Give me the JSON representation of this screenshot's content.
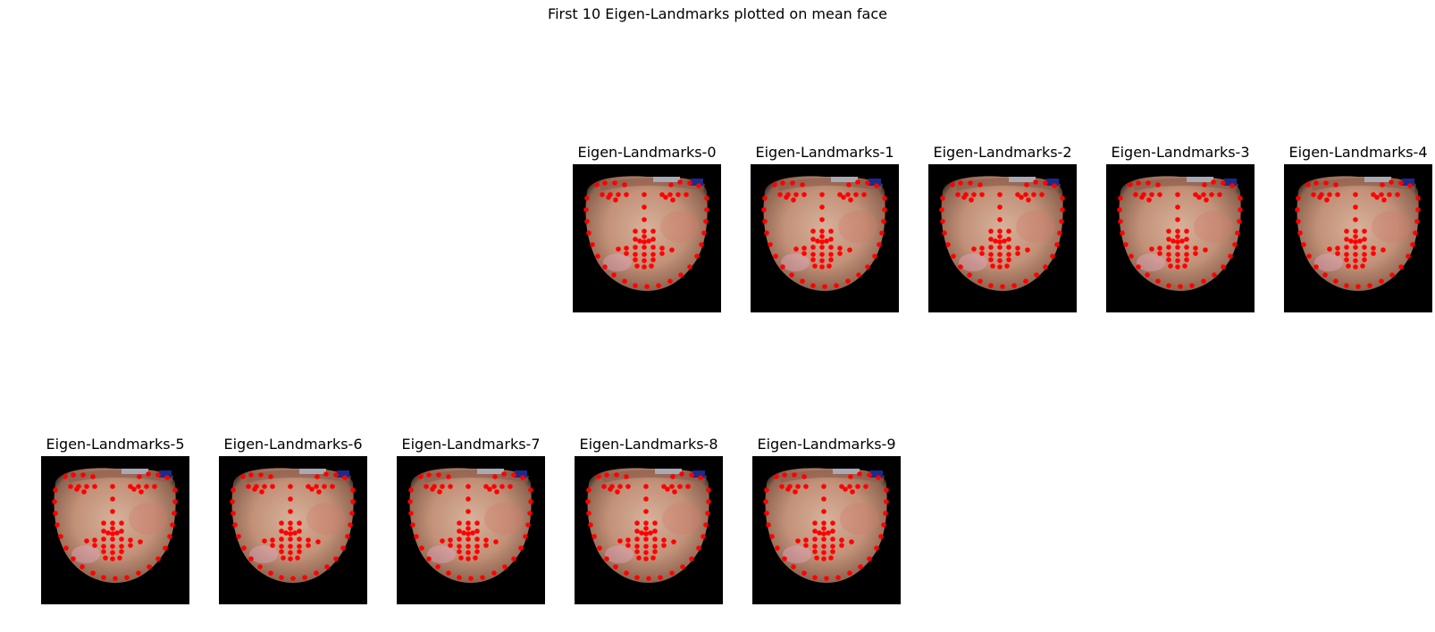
{
  "figure": {
    "title": "First 10 Eigen-Landmarks plotted on mean face"
  },
  "panels": [
    {
      "title": "Eigen-Landmarks-0"
    },
    {
      "title": "Eigen-Landmarks-1"
    },
    {
      "title": "Eigen-Landmarks-2"
    },
    {
      "title": "Eigen-Landmarks-3"
    },
    {
      "title": "Eigen-Landmarks-4"
    },
    {
      "title": "Eigen-Landmarks-5"
    },
    {
      "title": "Eigen-Landmarks-6"
    },
    {
      "title": "Eigen-Landmarks-7"
    },
    {
      "title": "Eigen-Landmarks-8"
    },
    {
      "title": "Eigen-Landmarks-9"
    }
  ],
  "colors": {
    "background": "#000000",
    "landmark": "#ff0000",
    "skin": "#c99a80"
  }
}
